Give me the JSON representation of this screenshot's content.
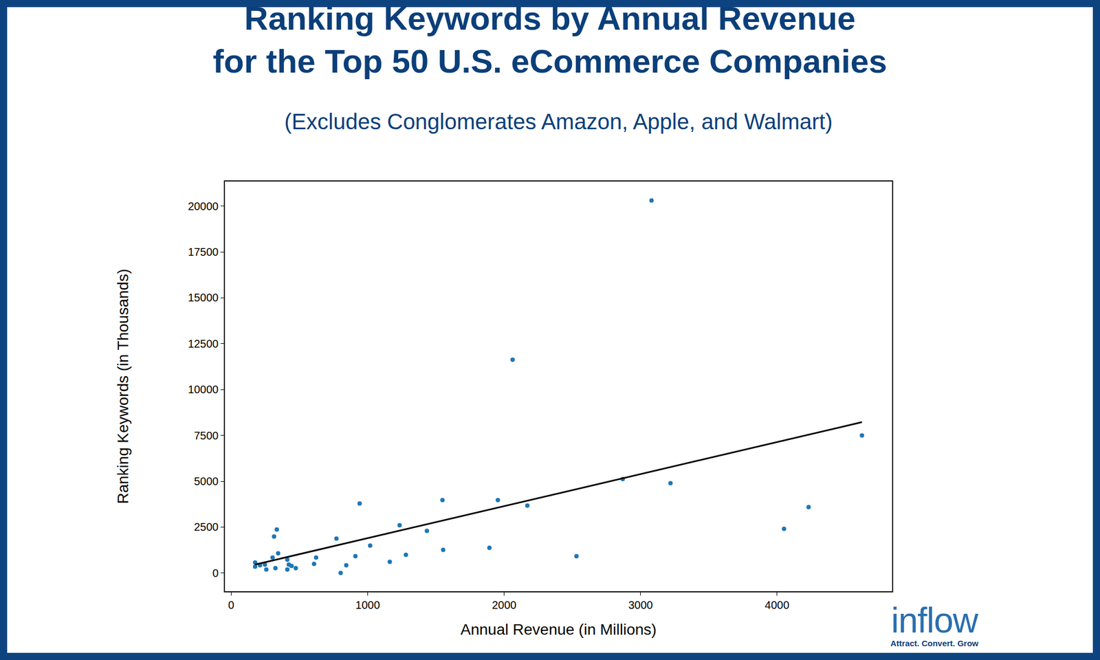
{
  "chart_data": {
    "type": "scatter",
    "title": [
      "Ranking Keywords by Annual Revenue",
      "for the Top 50 U.S. eCommerce Companies"
    ],
    "subtitle": "(Excludes Conglomerates Amazon, Apple, and Walmart)",
    "x_label": "Annual Revenue (in Millions)",
    "y_label": "Ranking Keywords (in Thousands)",
    "x": [
      175,
      175,
      211,
      247,
      257,
      303,
      314,
      334,
      324,
      344,
      411,
      411,
      422,
      442,
      473,
      607,
      622,
      771,
      802,
      843,
      910,
      941,
      1018,
      1162,
      1234,
      1280,
      1434,
      1548,
      1553,
      1892,
      1954,
      2062,
      2170,
      2530,
      2869,
      3080,
      3219,
      4051,
      4231,
      4622
    ],
    "values": [
      574,
      344,
      420,
      459,
      191,
      841,
      1989,
      2371,
      268,
      1071,
      727,
      191,
      459,
      382,
      268,
      497,
      841,
      1874,
      0,
      420,
      918,
      3786,
      1491,
      612,
      2600,
      994,
      2294,
      3977,
      1262,
      1377,
      3977,
      11625,
      3671,
      918,
      5124,
      20306,
      4895,
      2409,
      3595,
      7495
    ],
    "color": "#1f77b4",
    "marker": "circle",
    "trend_line": {
      "x": [
        175,
        4622
      ],
      "values": [
        459,
        8222
      ],
      "color": "#000000",
      "line_style": "solid"
    },
    "xlim": [
      -46,
      4843
    ],
    "ylim": [
      -994,
      21338
    ],
    "xticks": [
      0,
      1000,
      2000,
      3000,
      4000
    ],
    "yticks": [
      0,
      2500,
      5000,
      7500,
      10000,
      12500,
      15000,
      17500,
      20000
    ],
    "grid": false,
    "logo": {
      "text": "inflow",
      "tagline": "Attract. Convert. Grow"
    }
  }
}
